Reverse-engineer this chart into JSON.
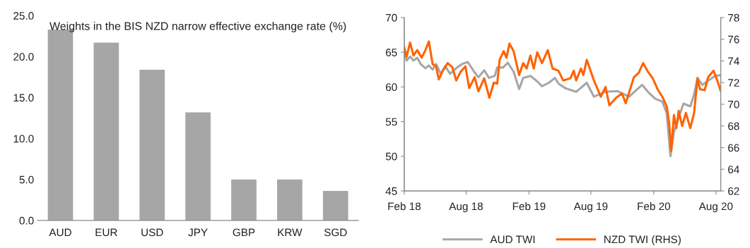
{
  "chart_data": [
    {
      "type": "bar",
      "title": "Weights in the BIS NZD narrow effective exchange rate (%)",
      "categories": [
        "AUD",
        "EUR",
        "USD",
        "JPY",
        "GBP",
        "KRW",
        "SGD"
      ],
      "series": [
        {
          "color": "#a6a6a6",
          "values": [
            23.3,
            21.7,
            18.4,
            13.2,
            5.0,
            5.0,
            3.6
          ]
        }
      ],
      "ylim": [
        0,
        25
      ],
      "yticks": [
        {
          "value": 0,
          "label": "0.0"
        },
        {
          "value": 5,
          "label": "5.0"
        },
        {
          "value": 10,
          "label": "10.0"
        },
        {
          "value": 15,
          "label": "15.0"
        },
        {
          "value": 20,
          "label": "20.0"
        },
        {
          "value": 25,
          "label": "25.0"
        }
      ],
      "grid": false
    },
    {
      "type": "line",
      "xlim": [
        "2018-02-01",
        "2020-08-15"
      ],
      "xticks": [
        {
          "value": "2018-02-01",
          "label": "Feb 18"
        },
        {
          "value": "2018-08-01",
          "label": "Aug 18"
        },
        {
          "value": "2019-02-01",
          "label": "Feb 19"
        },
        {
          "value": "2019-08-01",
          "label": "Aug 19"
        },
        {
          "value": "2020-02-01",
          "label": "Feb 20"
        },
        {
          "value": "2020-08-01",
          "label": "Aug 20"
        }
      ],
      "ylim": [
        45,
        70
      ],
      "yticks": [
        45,
        50,
        55,
        60,
        65,
        70
      ],
      "y2lim": [
        62,
        78
      ],
      "y2ticks": [
        62,
        64,
        66,
        68,
        70,
        72,
        74,
        76,
        78
      ],
      "grid": false,
      "legend": "bottom",
      "marker": "none",
      "line_style": "solid",
      "series": [
        {
          "name": "AUD TWI",
          "color": "#a6a6a6",
          "axis": "y",
          "x": [
            "2018-02-01",
            "2018-02-08",
            "2018-02-18",
            "2018-02-28",
            "2018-03-11",
            "2018-03-21",
            "2018-04-04",
            "2018-04-14",
            "2018-04-25",
            "2018-05-05",
            "2018-05-19",
            "2018-06-01",
            "2018-06-15",
            "2018-07-03",
            "2018-07-20",
            "2018-08-06",
            "2018-08-23",
            "2018-09-06",
            "2018-09-23",
            "2018-10-07",
            "2018-10-24",
            "2018-10-31",
            "2018-11-17",
            "2018-12-01",
            "2018-12-18",
            "2019-01-03",
            "2019-01-15",
            "2019-02-05",
            "2019-02-25",
            "2019-03-11",
            "2019-03-31",
            "2019-04-18",
            "2019-04-28",
            "2019-05-19",
            "2019-06-19",
            "2019-07-20",
            "2019-08-10",
            "2019-09-13",
            "2019-10-18",
            "2019-11-21",
            "2019-12-29",
            "2020-01-15",
            "2020-02-05",
            "2020-02-26",
            "2020-03-10",
            "2020-03-21",
            "2020-03-31",
            "2020-04-14",
            "2020-04-28",
            "2020-05-18",
            "2020-05-29",
            "2020-06-08",
            "2020-06-22",
            "2020-07-12",
            "2020-07-30",
            "2020-08-14"
          ],
          "values": [
            64.9,
            63.8,
            64.4,
            63.8,
            64.2,
            63.3,
            62.7,
            63.1,
            62.5,
            63.3,
            61.9,
            63.0,
            61.9,
            62.7,
            63.3,
            63.6,
            62.3,
            61.4,
            62.4,
            61.3,
            61.6,
            62.8,
            62.8,
            63.5,
            62.2,
            59.7,
            61.3,
            61.6,
            60.8,
            60.1,
            60.6,
            61.3,
            60.5,
            59.8,
            59.3,
            60.6,
            58.6,
            59.3,
            59.4,
            58.6,
            60.3,
            59.3,
            58.3,
            57.9,
            56.2,
            50.0,
            53.5,
            55.6,
            57.6,
            57.2,
            58.9,
            61.3,
            60.3,
            61.0,
            61.6,
            61.7
          ]
        },
        {
          "name": "NZD TWI (RHS)",
          "color": "#ff6200",
          "axis": "y2",
          "x": [
            "2018-02-01",
            "2018-02-08",
            "2018-02-18",
            "2018-02-28",
            "2018-03-11",
            "2018-03-24",
            "2018-04-04",
            "2018-04-14",
            "2018-04-25",
            "2018-05-05",
            "2018-05-13",
            "2018-05-25",
            "2018-06-08",
            "2018-06-22",
            "2018-07-03",
            "2018-07-16",
            "2018-07-30",
            "2018-08-10",
            "2018-08-26",
            "2018-09-06",
            "2018-09-23",
            "2018-10-08",
            "2018-10-21",
            "2018-10-31",
            "2018-11-07",
            "2018-11-19",
            "2018-11-27",
            "2018-12-06",
            "2018-12-18",
            "2019-01-03",
            "2019-01-15",
            "2019-01-25",
            "2019-02-05",
            "2019-02-15",
            "2019-02-25",
            "2019-03-11",
            "2019-03-28",
            "2019-04-11",
            "2019-04-28",
            "2019-05-12",
            "2019-06-02",
            "2019-06-12",
            "2019-06-19",
            "2019-07-03",
            "2019-07-10",
            "2019-07-20",
            "2019-08-10",
            "2019-08-30",
            "2019-09-13",
            "2019-09-24",
            "2019-10-14",
            "2019-10-31",
            "2019-11-11",
            "2019-11-21",
            "2019-12-05",
            "2019-12-19",
            "2020-01-01",
            "2020-01-15",
            "2020-01-29",
            "2020-02-12",
            "2020-02-26",
            "2020-03-10",
            "2020-03-17",
            "2020-03-23",
            "2020-03-31",
            "2020-04-07",
            "2020-04-14",
            "2020-04-24",
            "2020-05-05",
            "2020-05-18",
            "2020-05-29",
            "2020-06-08",
            "2020-06-15",
            "2020-06-29",
            "2020-07-09",
            "2020-07-25",
            "2020-08-06",
            "2020-08-14"
          ],
          "values": [
            75.25,
            74.4,
            75.7,
            74.5,
            75.0,
            74.3,
            75.0,
            75.8,
            73.7,
            73.5,
            72.3,
            73.1,
            73.8,
            73.4,
            72.2,
            73.0,
            73.5,
            71.5,
            72.5,
            71.2,
            72.4,
            70.6,
            72.0,
            71.9,
            74.1,
            74.9,
            74.3,
            75.6,
            74.9,
            72.7,
            73.8,
            73.3,
            74.5,
            73.3,
            74.8,
            73.8,
            75.0,
            73.3,
            73.1,
            72.2,
            72.4,
            73.1,
            72.2,
            73.3,
            72.7,
            74.1,
            72.2,
            70.7,
            71.6,
            69.9,
            70.6,
            71.0,
            70.1,
            71.1,
            72.5,
            72.9,
            73.8,
            73.0,
            72.4,
            71.4,
            70.7,
            69.8,
            68.3,
            65.7,
            69.0,
            67.8,
            69.4,
            68.0,
            69.2,
            67.8,
            69.2,
            72.4,
            71.4,
            71.3,
            72.5,
            73.1,
            72.1,
            71.3
          ]
        }
      ]
    }
  ]
}
